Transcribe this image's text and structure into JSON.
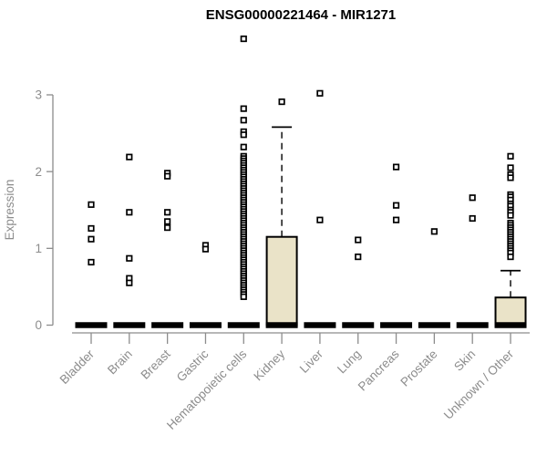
{
  "chart_data": {
    "type": "boxplot",
    "title": "ENSG00000221464 - MIR1271",
    "ylabel": "Expression",
    "yticks": [
      0,
      1,
      2,
      3
    ],
    "ylim": [
      0,
      3.9
    ],
    "grid": false,
    "legend": "none",
    "axis_color": "#8C8C8C",
    "box_fill_color": "#EAE3C8",
    "box_border_color": "#000000",
    "outlier_marker": "open-square",
    "categories": [
      "Bladder",
      "Brain",
      "Breast",
      "Gastric",
      "Hematopoietic cells",
      "Kidney",
      "Liver",
      "Lung",
      "Pancreas",
      "Prostate",
      "Skin",
      "Unknown / Other"
    ],
    "series": [
      {
        "name": "Bladder",
        "q1": 0,
        "median": 0,
        "q3": 0,
        "whisker_low": 0,
        "whisker_high": 0,
        "outliers": [
          1.57,
          1.26,
          1.12,
          0.82
        ]
      },
      {
        "name": "Brain",
        "q1": 0,
        "median": 0,
        "q3": 0,
        "whisker_low": 0,
        "whisker_high": 0,
        "outliers": [
          2.19,
          1.47,
          0.87,
          0.61,
          0.55
        ]
      },
      {
        "name": "Breast",
        "q1": 0,
        "median": 0,
        "q3": 0,
        "whisker_low": 0,
        "whisker_high": 0,
        "outliers": [
          1.98,
          1.94,
          1.47,
          1.35,
          1.27
        ]
      },
      {
        "name": "Gastric",
        "q1": 0,
        "median": 0,
        "q3": 0,
        "whisker_low": 0,
        "whisker_high": 0,
        "outliers": [
          1.04,
          0.99
        ]
      },
      {
        "name": "Hematopoietic cells",
        "q1": 0,
        "median": 0,
        "q3": 0,
        "whisker_low": 0,
        "whisker_high": 0,
        "outliers": [
          3.73,
          2.82,
          2.67,
          2.52,
          2.48,
          2.32,
          2.2,
          2.17,
          2.14,
          2.11,
          2.08,
          2.05,
          2.02,
          1.99,
          1.96,
          1.93,
          1.9,
          1.87,
          1.84,
          1.81,
          1.78,
          1.75,
          1.72,
          1.69,
          1.66,
          1.63,
          1.6,
          1.57,
          1.54,
          1.51,
          1.48,
          1.45,
          1.42,
          1.39,
          1.36,
          1.33,
          1.3,
          1.27,
          1.24,
          1.21,
          1.18,
          1.15,
          1.12,
          1.09,
          1.06,
          1.03,
          1.0,
          0.97,
          0.94,
          0.91,
          0.88,
          0.85,
          0.82,
          0.79,
          0.76,
          0.73,
          0.7,
          0.67,
          0.64,
          0.61,
          0.58,
          0.55,
          0.52,
          0.49,
          0.46,
          0.43,
          0.4,
          0.37
        ]
      },
      {
        "name": "Kidney",
        "q1": 0,
        "median": 0,
        "q3": 1.15,
        "whisker_low": 0,
        "whisker_high": 2.58,
        "outliers": [
          2.91
        ]
      },
      {
        "name": "Liver",
        "q1": 0,
        "median": 0,
        "q3": 0,
        "whisker_low": 0,
        "whisker_high": 0,
        "outliers": [
          3.02,
          1.37
        ]
      },
      {
        "name": "Lung",
        "q1": 0,
        "median": 0,
        "q3": 0,
        "whisker_low": 0,
        "whisker_high": 0,
        "outliers": [
          1.11,
          0.89
        ]
      },
      {
        "name": "Pancreas",
        "q1": 0,
        "median": 0,
        "q3": 0,
        "whisker_low": 0,
        "whisker_high": 0,
        "outliers": [
          2.06,
          1.56,
          1.37
        ]
      },
      {
        "name": "Prostate",
        "q1": 0,
        "median": 0,
        "q3": 0,
        "whisker_low": 0,
        "whisker_high": 0,
        "outliers": [
          1.22
        ]
      },
      {
        "name": "Skin",
        "q1": 0,
        "median": 0,
        "q3": 0,
        "whisker_low": 0,
        "whisker_high": 0,
        "outliers": [
          1.66,
          1.39
        ]
      },
      {
        "name": "Unknown / Other",
        "q1": 0,
        "median": 0,
        "q3": 0.36,
        "whisker_low": 0,
        "whisker_high": 0.71,
        "outliers": [
          2.2,
          2.05,
          1.96,
          1.92,
          1.7,
          1.67,
          1.63,
          1.58,
          1.55,
          1.5,
          1.47,
          1.43,
          1.33,
          1.3,
          1.27,
          1.24,
          1.21,
          1.18,
          1.15,
          1.12,
          1.09,
          1.06,
          1.03,
          1.0,
          0.97,
          0.94,
          0.89
        ]
      }
    ]
  }
}
